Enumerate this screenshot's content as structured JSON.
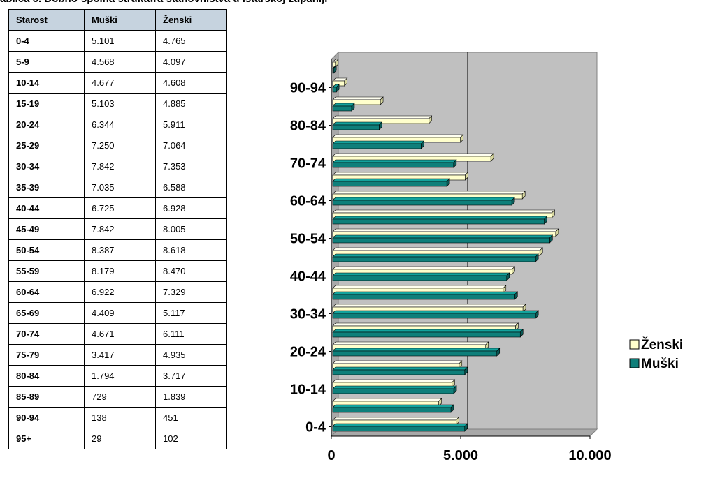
{
  "caption": "ablica 5. Dobno-spolna struktura stanovništva u Istarskoj županiji",
  "table": {
    "headers": [
      "Starost",
      "Muški",
      "Ženski"
    ],
    "rows": [
      [
        "0-4",
        "5.101",
        "4.765"
      ],
      [
        "5-9",
        "4.568",
        "4.097"
      ],
      [
        "10-14",
        "4.677",
        "4.608"
      ],
      [
        "15-19",
        "5.103",
        "4.885"
      ],
      [
        "20-24",
        "6.344",
        "5.911"
      ],
      [
        "25-29",
        "7.250",
        "7.064"
      ],
      [
        "30-34",
        "7.842",
        "7.353"
      ],
      [
        "35-39",
        "7.035",
        "6.588"
      ],
      [
        "40-44",
        "6.725",
        "6.928"
      ],
      [
        "45-49",
        "7.842",
        "8.005"
      ],
      [
        "50-54",
        "8.387",
        "8.618"
      ],
      [
        "55-59",
        "8.179",
        "8.470"
      ],
      [
        "60-64",
        "6.922",
        "7.329"
      ],
      [
        "65-69",
        "4.409",
        "5.117"
      ],
      [
        "70-74",
        "4.671",
        "6.111"
      ],
      [
        "75-79",
        "3.417",
        "4.935"
      ],
      [
        "80-84",
        "1.794",
        "3.717"
      ],
      [
        "85-89",
        "729",
        "1.839"
      ],
      [
        "90-94",
        "138",
        "451"
      ],
      [
        "95+",
        "29",
        "102"
      ]
    ]
  },
  "chart_data": {
    "type": "bar",
    "orientation": "horizontal",
    "style": "3d",
    "categories": [
      "0-4",
      "5-9",
      "10-14",
      "15-19",
      "20-24",
      "25-29",
      "30-34",
      "35-39",
      "40-44",
      "45-49",
      "50-54",
      "55-59",
      "60-64",
      "65-69",
      "70-74",
      "75-79",
      "80-84",
      "85-89",
      "90-94",
      "95+"
    ],
    "y_tick_labels": [
      "0-4",
      "10-14",
      "20-24",
      "30-34",
      "40-44",
      "50-54",
      "60-64",
      "70-74",
      "80-84",
      "90-94"
    ],
    "x_tick_labels": [
      "0",
      "5.000",
      "10.000"
    ],
    "series": [
      {
        "name": "Muški",
        "color": "#0e7f7a",
        "values": [
          5101,
          4568,
          4677,
          5103,
          6344,
          7250,
          7842,
          7035,
          6725,
          7842,
          8387,
          8179,
          6922,
          4409,
          4671,
          3417,
          1794,
          729,
          138,
          29
        ]
      },
      {
        "name": "Ženski",
        "color": "#ffffcc",
        "values": [
          4765,
          4097,
          4608,
          4885,
          5911,
          7064,
          7353,
          6588,
          6928,
          8005,
          8618,
          8470,
          7329,
          5117,
          6111,
          4935,
          3717,
          1839,
          451,
          102
        ]
      }
    ],
    "legend_order": [
      "Ženski",
      "Muški"
    ],
    "xlim": [
      0,
      10000
    ],
    "grid": true,
    "plot_background": "#c0c0c0",
    "legend_position": "right"
  }
}
